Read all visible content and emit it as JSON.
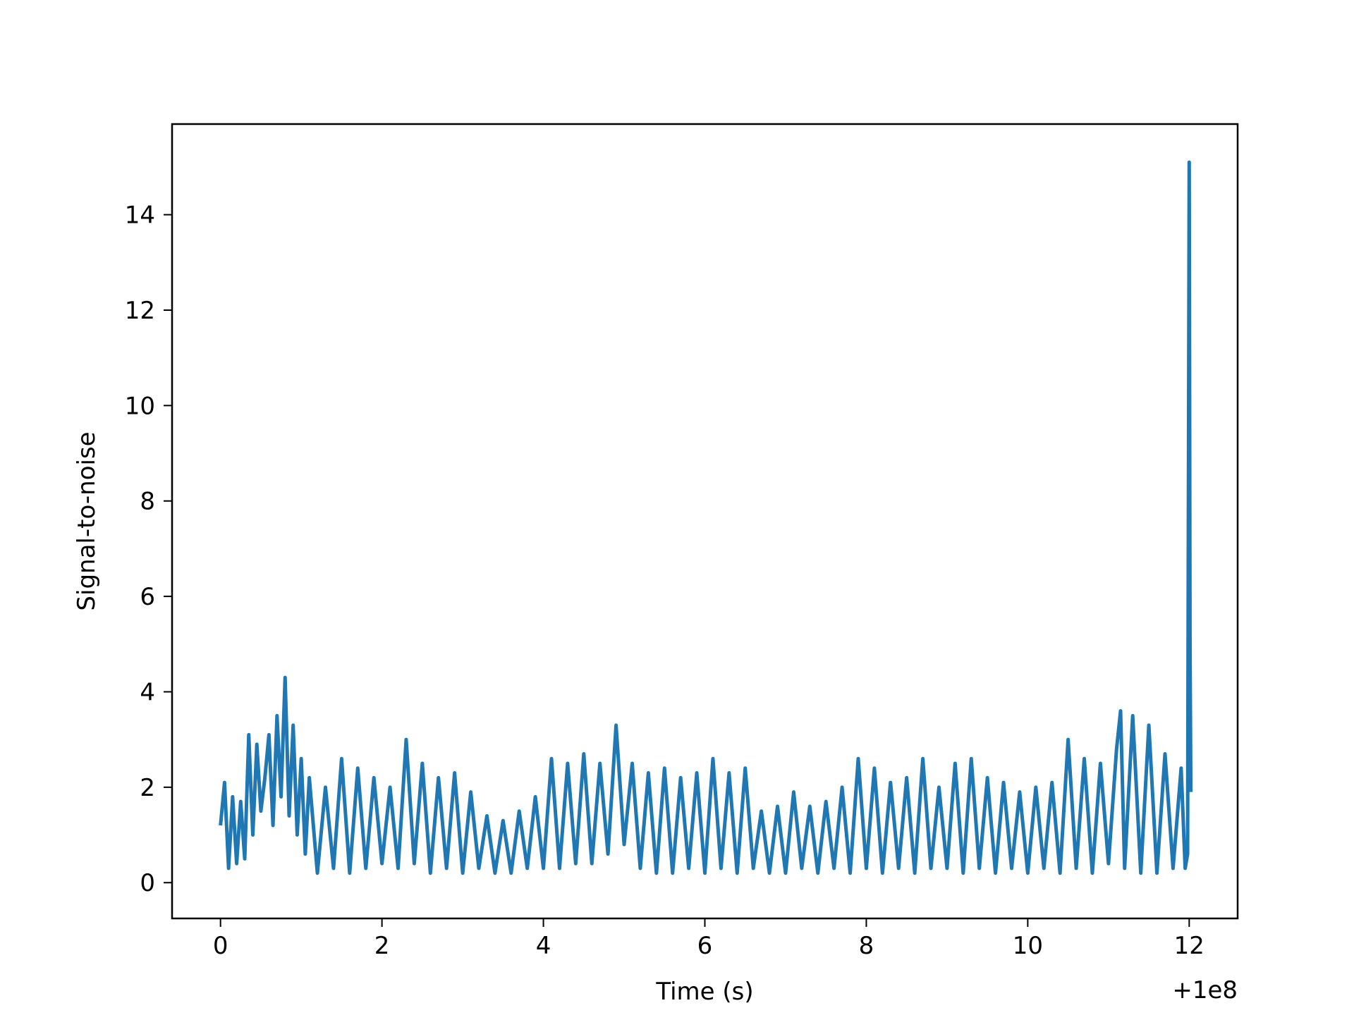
{
  "chart_data": {
    "type": "line",
    "title": "",
    "xlabel": "Time (s)",
    "ylabel": "Signal-to-noise",
    "x_offset_label": "+1e8",
    "xlim": [
      -0.6,
      12.6
    ],
    "ylim": [
      -0.75,
      15.9
    ],
    "xticks": [
      0,
      2,
      4,
      6,
      8,
      10,
      12
    ],
    "yticks": [
      0,
      2,
      4,
      6,
      8,
      10,
      12,
      14
    ],
    "grid": false,
    "legend": "none",
    "series": [
      {
        "color": "#1f77b4",
        "x": [
          0.0,
          0.05,
          0.1,
          0.15,
          0.2,
          0.25,
          0.3,
          0.35,
          0.4,
          0.45,
          0.5,
          0.55,
          0.6,
          0.65,
          0.7,
          0.75,
          0.8,
          0.85,
          0.9,
          0.95,
          1.0,
          1.05,
          1.1,
          1.2,
          1.3,
          1.4,
          1.5,
          1.6,
          1.7,
          1.8,
          1.9,
          2.0,
          2.1,
          2.2,
          2.3,
          2.4,
          2.5,
          2.6,
          2.7,
          2.8,
          2.9,
          3.0,
          3.1,
          3.2,
          3.3,
          3.4,
          3.5,
          3.6,
          3.7,
          3.8,
          3.9,
          4.0,
          4.1,
          4.2,
          4.3,
          4.4,
          4.5,
          4.6,
          4.7,
          4.8,
          4.9,
          5.0,
          5.1,
          5.2,
          5.3,
          5.4,
          5.5,
          5.6,
          5.7,
          5.8,
          5.9,
          6.0,
          6.1,
          6.2,
          6.3,
          6.4,
          6.5,
          6.6,
          6.7,
          6.8,
          6.9,
          7.0,
          7.1,
          7.2,
          7.3,
          7.4,
          7.5,
          7.6,
          7.7,
          7.8,
          7.9,
          8.0,
          8.1,
          8.2,
          8.3,
          8.4,
          8.5,
          8.6,
          8.7,
          8.8,
          8.9,
          9.0,
          9.1,
          9.2,
          9.3,
          9.4,
          9.5,
          9.6,
          9.7,
          9.8,
          9.9,
          10.0,
          10.1,
          10.2,
          10.3,
          10.4,
          10.5,
          10.6,
          10.7,
          10.8,
          10.9,
          11.0,
          11.1,
          11.15,
          11.2,
          11.3,
          11.4,
          11.5,
          11.6,
          11.7,
          11.8,
          11.9,
          11.95,
          11.98,
          12.0,
          12.01,
          12.02
        ],
        "y": [
          1.2,
          2.1,
          0.3,
          1.8,
          0.4,
          1.7,
          0.5,
          3.1,
          1.0,
          2.9,
          1.5,
          2.2,
          3.1,
          1.2,
          3.5,
          1.8,
          4.3,
          1.4,
          3.3,
          1.0,
          2.6,
          0.6,
          2.2,
          0.2,
          2.0,
          0.3,
          2.6,
          0.2,
          2.4,
          0.3,
          2.2,
          0.4,
          2.0,
          0.3,
          3.0,
          0.4,
          2.5,
          0.2,
          2.2,
          0.3,
          2.3,
          0.2,
          1.9,
          0.3,
          1.4,
          0.2,
          1.3,
          0.2,
          1.5,
          0.3,
          1.8,
          0.3,
          2.6,
          0.3,
          2.5,
          0.4,
          2.7,
          0.4,
          2.5,
          0.6,
          3.3,
          0.8,
          2.5,
          0.3,
          2.3,
          0.2,
          2.4,
          0.2,
          2.2,
          0.3,
          2.3,
          0.2,
          2.6,
          0.3,
          2.3,
          0.2,
          2.4,
          0.3,
          1.5,
          0.2,
          1.6,
          0.2,
          1.9,
          0.3,
          1.6,
          0.2,
          1.7,
          0.3,
          2.0,
          0.2,
          2.6,
          0.3,
          2.4,
          0.2,
          2.1,
          0.3,
          2.2,
          0.2,
          2.6,
          0.3,
          2.0,
          0.3,
          2.5,
          0.2,
          2.6,
          0.3,
          2.2,
          0.2,
          2.1,
          0.3,
          1.9,
          0.2,
          2.0,
          0.3,
          2.1,
          0.2,
          3.0,
          0.3,
          2.6,
          0.2,
          2.5,
          0.4,
          2.8,
          3.6,
          0.3,
          3.5,
          0.2,
          3.3,
          0.2,
          2.7,
          0.3,
          2.4,
          0.3,
          0.6,
          15.1,
          5.1,
          1.9
        ]
      }
    ]
  }
}
